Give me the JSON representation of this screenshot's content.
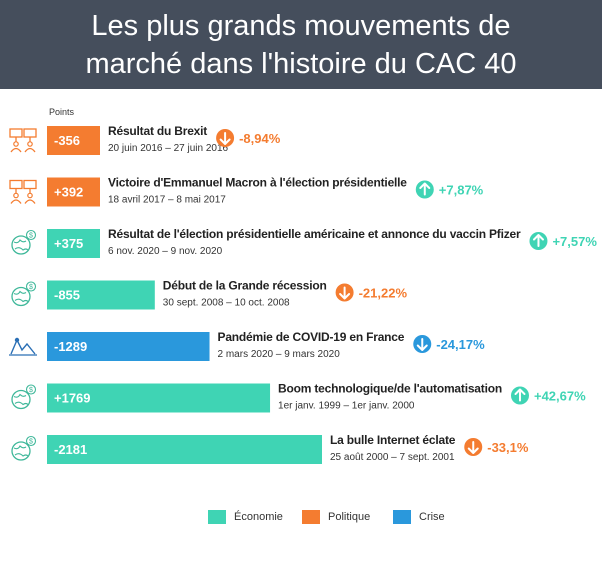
{
  "title": "Les plus grands mouvements de marché dans l'histoire du CAC 40",
  "units_label": "Points",
  "colors": {
    "economie": "#3fd4b4",
    "politique": "#f47c30",
    "crise": "#2a98dc",
    "neg": "#f47c30",
    "pos": "#3fd4b4",
    "neg_crise": "#2a98dc"
  },
  "chart_data": {
    "type": "bar",
    "orientation": "horizontal",
    "categories": [
      "Résultat du Brexit",
      "Victoire d'Emmanuel Macron à l'élection présidentielle",
      "Résultat de l'élection présidentielle américaine et annonce du vaccin Pfizer",
      "Début de la Grande récession",
      "Pandémie de COVID-19 en France",
      "Boom technologique/de l'automatisation",
      "La bulle Internet éclate"
    ],
    "rows": [
      {
        "label": "Résultat du Brexit",
        "dates": "20 juin 2016 – 27 juin 2016",
        "value": -356,
        "value_label": "-356",
        "change": "-8,94%",
        "direction": "down",
        "category": "politique",
        "icon": "protest-sign-icon"
      },
      {
        "label": "Victoire d'Emmanuel Macron à l'élection présidentielle",
        "dates": "18 avril 2017 – 8 mai 2017",
        "value": 392,
        "value_label": "+392",
        "change": "+7,87%",
        "direction": "up",
        "category": "politique",
        "icon": "protest-sign-icon"
      },
      {
        "label": "Résultat de l'élection présidentielle américaine et annonce du vaccin Pfizer",
        "dates": "6 nov. 2020 – 9 nov. 2020",
        "value": 375,
        "value_label": "+375",
        "change": "+7,57%",
        "direction": "up",
        "category": "economie",
        "icon": "globe-dollar-icon"
      },
      {
        "label": "Début de la Grande récession",
        "dates": "30 sept. 2008 – 10 oct. 2008",
        "value": -855,
        "value_label": "-855",
        "change": "-21,22%",
        "direction": "down",
        "category": "economie",
        "icon": "globe-dollar-icon"
      },
      {
        "label": "Pandémie de COVID-19 en France",
        "dates": "2 mars 2020 – 9 mars 2020",
        "value": -1289,
        "value_label": "-1289",
        "change": "-24,17%",
        "direction": "down",
        "category": "crise",
        "icon": "virus-chart-icon"
      },
      {
        "label": "Boom technologique/de l'automatisation",
        "dates": "1er janv. 1999 – 1er janv. 2000",
        "value": 1769,
        "value_label": "+1769",
        "change": "+42,67%",
        "direction": "up",
        "category": "economie",
        "icon": "globe-dollar-icon"
      },
      {
        "label": "La bulle Internet éclate",
        "dates": "25 août 2000 – 7 sept. 2001",
        "value": -2181,
        "value_label": "-2181",
        "change": "-33,1%",
        "direction": "down",
        "category": "economie",
        "icon": "globe-dollar-icon"
      }
    ],
    "legend": [
      {
        "key": "economie",
        "label": "Économie"
      },
      {
        "key": "politique",
        "label": "Politique"
      },
      {
        "key": "crise",
        "label": "Crise"
      }
    ],
    "legend_position": "bottom"
  }
}
